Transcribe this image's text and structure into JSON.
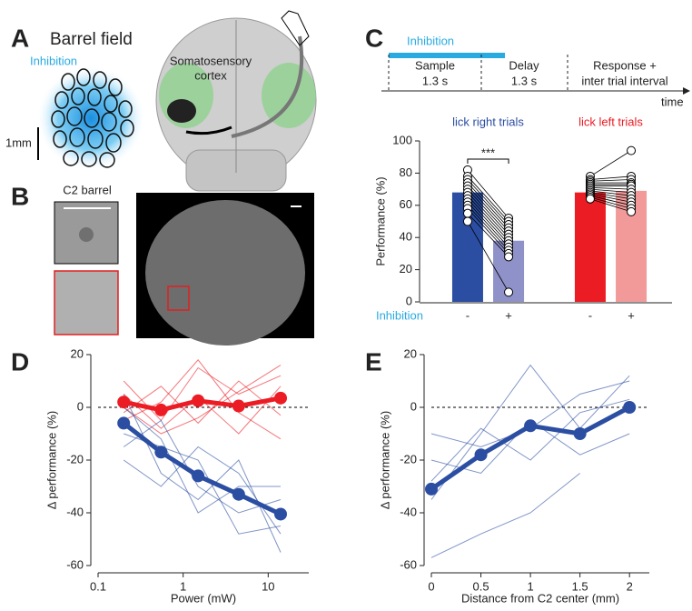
{
  "panels": {
    "a": {
      "letter": "A",
      "title": "Barrel field",
      "inhibition": "Inhibition",
      "scale": "1mm",
      "cortex": [
        "Somatosensory",
        "cortex"
      ]
    },
    "b": {
      "letter": "B",
      "barrel": "C2 barrel"
    },
    "timeline": {
      "letter": "C",
      "inhibition": "Inhibition",
      "epochs": [
        [
          "Sample",
          "1.3 s"
        ],
        [
          "Delay",
          "1.3 s"
        ],
        [
          "Response +",
          "inter trial interval"
        ]
      ],
      "axis": "time"
    },
    "d": {
      "letter": "D"
    },
    "e": {
      "letter": "E"
    }
  },
  "chart_data": [
    {
      "type": "bar",
      "categories": [
        "-",
        "+",
        "-",
        "+"
      ],
      "values": [
        68,
        38,
        68,
        69
      ],
      "colors": [
        "#2b4ea2",
        "#8f91c9",
        "#ec1c24",
        "#f29a9a"
      ],
      "groups": [
        {
          "label": "lick right trials",
          "color": "#2b4ea2"
        },
        {
          "label": "lick left trials",
          "color": "#ec1c24"
        }
      ],
      "individual": [
        [
          82,
          78,
          76,
          74,
          72,
          70,
          68,
          66,
          64,
          62,
          60,
          58,
          55,
          50
        ],
        [
          52,
          50,
          48,
          46,
          44,
          42,
          40,
          38,
          36,
          34,
          32,
          30,
          28,
          6
        ],
        [
          78,
          76,
          75,
          74,
          73,
          72,
          71,
          70,
          69,
          68,
          67,
          66,
          65,
          64
        ],
        [
          94,
          78,
          76,
          74,
          73,
          72,
          70,
          68,
          66,
          64,
          62,
          60,
          58,
          56
        ]
      ],
      "annotation": "***",
      "xlabel": "Inhibition",
      "xlabel_color": "#29abe2",
      "ylabel": "Performance (%)",
      "ylim": [
        0,
        100
      ],
      "yticks": [
        0,
        20,
        40,
        60,
        80,
        100
      ]
    },
    {
      "type": "line",
      "xscale": "log",
      "xlim": [
        0.1,
        30
      ],
      "xticks": [
        0.1,
        1,
        10
      ],
      "ylim": [
        -60,
        20
      ],
      "yticks": [
        -60,
        -40,
        -20,
        0,
        20
      ],
      "zero_line": true,
      "xlabel": "Power (mW)",
      "ylabel": "Δ performance (%)",
      "series": [
        {
          "color": "#ec1c24",
          "x": [
            0.2,
            0.55,
            1.5,
            4.5,
            14
          ],
          "values": [
            2,
            -1,
            2.5,
            0.5,
            3.5
          ]
        },
        {
          "color": "#2b4ea2",
          "x": [
            0.2,
            0.55,
            1.5,
            4.5,
            14
          ],
          "values": [
            -6,
            -17,
            -26,
            -33,
            -40.5
          ]
        }
      ],
      "individual": [
        {
          "color": "#ec1c24",
          "x": [
            0.2,
            0.55,
            1.5,
            4.5,
            14
          ],
          "values": [
            10,
            -5,
            15,
            5,
            12
          ]
        },
        {
          "color": "#ec1c24",
          "x": [
            0.2,
            0.55,
            1.5,
            4.5,
            14
          ],
          "values": [
            -2,
            8,
            -6,
            10,
            -3
          ]
        },
        {
          "color": "#ec1c24",
          "x": [
            0.2,
            0.55,
            1.5,
            4.5,
            14
          ],
          "values": [
            5,
            -8,
            4,
            -10,
            8
          ]
        },
        {
          "color": "#ec1c24",
          "x": [
            0.2,
            0.55,
            1.5,
            4.5,
            14
          ],
          "values": [
            -5,
            2,
            18,
            -2,
            -12
          ]
        },
        {
          "color": "#ec1c24",
          "x": [
            0.2,
            0.55,
            1.5,
            4.5,
            14
          ],
          "values": [
            0,
            -10,
            -4,
            6,
            16
          ]
        },
        {
          "color": "#2b4ea2",
          "x": [
            0.2,
            0.55,
            1.5,
            4.5,
            14
          ],
          "values": [
            -10,
            -15,
            -20,
            -48,
            -45
          ]
        },
        {
          "color": "#2b4ea2",
          "x": [
            0.2,
            0.55,
            1.5,
            4.5,
            14
          ],
          "values": [
            5,
            -25,
            -35,
            -20,
            -55
          ]
        },
        {
          "color": "#2b4ea2",
          "x": [
            0.2,
            0.55,
            1.5,
            4.5,
            14
          ],
          "values": [
            -15,
            -5,
            -30,
            -40,
            -35
          ]
        },
        {
          "color": "#2b4ea2",
          "x": [
            0.2,
            0.55,
            1.5,
            4.5,
            14
          ],
          "values": [
            -20,
            -30,
            -15,
            -25,
            -48
          ]
        },
        {
          "color": "#2b4ea2",
          "x": [
            0.2,
            0.55,
            1.5,
            4.5,
            14
          ],
          "values": [
            0,
            -12,
            -40,
            -30,
            -30
          ]
        }
      ]
    },
    {
      "type": "line",
      "xscale": "linear",
      "xlim": [
        0,
        2.2
      ],
      "xticks": [
        0,
        0.5,
        1,
        1.5,
        2
      ],
      "ylim": [
        -60,
        20
      ],
      "yticks": [
        -60,
        -40,
        -20,
        0,
        20
      ],
      "zero_line": true,
      "xlabel": "Distance from C2 center (mm)",
      "ylabel": "Δ performance (%)",
      "series": [
        {
          "color": "#2b4ea2",
          "x": [
            0,
            0.5,
            1,
            1.5,
            2
          ],
          "values": [
            -31,
            -18,
            -7,
            -10,
            0
          ]
        }
      ],
      "individual": [
        {
          "color": "#2b4ea2",
          "x": [
            0,
            0.5,
            1,
            1.5,
            2
          ],
          "values": [
            -35,
            -10,
            16,
            -8,
            12
          ]
        },
        {
          "color": "#2b4ea2",
          "x": [
            0,
            0.5,
            1,
            1.5,
            2
          ],
          "values": [
            -20,
            -25,
            -5,
            -18,
            -10
          ]
        },
        {
          "color": "#2b4ea2",
          "x": [
            0,
            0.5,
            1,
            1.5,
            2
          ],
          "values": [
            -57,
            -48,
            -40,
            -25,
            null
          ]
        },
        {
          "color": "#2b4ea2",
          "x": [
            0,
            0.5,
            1,
            1.5,
            2
          ],
          "values": [
            -10,
            -15,
            -8,
            5,
            10
          ]
        },
        {
          "color": "#2b4ea2",
          "x": [
            0,
            0.5,
            1,
            1.5,
            2
          ],
          "values": [
            -28,
            -8,
            -20,
            -2,
            3
          ]
        }
      ]
    }
  ]
}
